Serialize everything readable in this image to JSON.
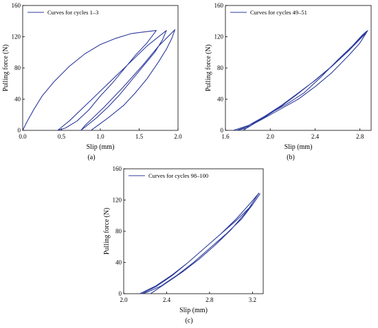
{
  "chart_data": [
    {
      "panel": "(a)",
      "type": "line",
      "legend": "Curves for cycles 1–3",
      "legend_position": "top-left",
      "grid": false,
      "xlabel": "Slip (mm)",
      "ylabel": "Pulling force (N)",
      "xlim": [
        0.0,
        2.0
      ],
      "ylim": [
        0,
        160
      ],
      "xticks": [
        "0.0",
        "0.5",
        "1.0",
        "1.5",
        "2.0"
      ],
      "yticks": [
        "0",
        "40",
        "80",
        "120",
        "160"
      ],
      "color": "#2b3a9b",
      "series": [
        {
          "x": [
            0.0,
            0.05,
            0.15,
            0.25,
            0.4,
            0.6,
            0.8,
            1.0,
            1.2,
            1.4,
            1.55,
            1.72,
            1.6,
            1.45,
            1.3,
            1.15,
            1.0,
            0.85,
            0.7,
            0.55,
            0.45,
            0.6,
            0.85,
            1.1,
            1.35,
            1.6,
            1.85,
            1.8,
            1.7,
            1.55,
            1.4,
            1.25,
            1.1,
            0.95,
            0.75,
            0.8,
            1.05,
            1.3,
            1.55,
            1.75,
            1.96,
            1.92,
            1.85,
            1.75,
            1.6,
            1.45,
            1.3,
            1.1,
            0.88
          ]
        },
        {
          "y": [
            0,
            10,
            28,
            44,
            62,
            82,
            98,
            110,
            118,
            124,
            126,
            128,
            112,
            96,
            78,
            60,
            44,
            26,
            12,
            3,
            0,
            12,
            36,
            60,
            84,
            108,
            128,
            116,
            100,
            82,
            64,
            46,
            30,
            16,
            0,
            6,
            30,
            56,
            84,
            108,
            129,
            118,
            104,
            88,
            66,
            48,
            32,
            16,
            0
          ]
        }
      ]
    },
    {
      "panel": "(b)",
      "type": "line",
      "legend": "Curves for cycles 49–51",
      "legend_position": "top-left",
      "grid": false,
      "xlabel": "Slip (mm)",
      "ylabel": "Pulling force (N)",
      "xlim": [
        1.6,
        2.9
      ],
      "ylim": [
        0,
        160
      ],
      "xticks": [
        "1.6",
        "2.0",
        "2.4",
        "2.8"
      ],
      "yticks": [
        "0",
        "40",
        "80",
        "120",
        "160"
      ],
      "color": "#2b3a9b",
      "series": [
        {
          "x": [
            1.67,
            1.8,
            1.95,
            2.1,
            2.25,
            2.4,
            2.55,
            2.7,
            2.85,
            2.87,
            2.8,
            2.7,
            2.55,
            2.4,
            2.25,
            2.1,
            1.95,
            1.82,
            1.7,
            1.79,
            1.93,
            2.08,
            2.23,
            2.38,
            2.53,
            2.68,
            2.82,
            2.86,
            2.76,
            2.6,
            2.45,
            2.3,
            2.15,
            2.0,
            1.86,
            1.76
          ]
        },
        {
          "y": [
            0,
            6,
            18,
            32,
            48,
            64,
            82,
            102,
            124,
            128,
            112,
            96,
            74,
            56,
            40,
            28,
            16,
            6,
            0,
            3,
            15,
            29,
            45,
            62,
            80,
            100,
            122,
            127,
            112,
            90,
            68,
            48,
            34,
            22,
            10,
            0
          ]
        }
      ]
    },
    {
      "panel": "(c)",
      "type": "line",
      "legend": "Curves for cycles 98–100",
      "legend_position": "top-left",
      "grid": false,
      "xlabel": "Slip (mm)",
      "ylabel": "Pulling force (N)",
      "xlim": [
        2.0,
        3.3
      ],
      "ylim": [
        0,
        160
      ],
      "xticks": [
        "2.0",
        "2.4",
        "2.8",
        "3.2"
      ],
      "yticks": [
        "0",
        "40",
        "80",
        "120",
        "160"
      ],
      "color": "#2b3a9b",
      "series": [
        {
          "x": [
            2.15,
            2.3,
            2.45,
            2.6,
            2.75,
            2.9,
            3.05,
            3.2,
            3.27,
            3.2,
            3.1,
            2.95,
            2.8,
            2.65,
            2.5,
            2.35,
            2.22,
            2.17,
            2.3,
            2.45,
            2.6,
            2.75,
            2.9,
            3.05,
            3.18,
            3.26,
            3.15,
            3.0,
            2.85,
            2.7,
            2.55,
            2.4,
            2.25
          ]
        },
        {
          "y": [
            0,
            10,
            24,
            40,
            58,
            76,
            94,
            114,
            128,
            114,
            96,
            76,
            58,
            40,
            24,
            10,
            2,
            0,
            9,
            23,
            40,
            58,
            76,
            96,
            116,
            129,
            106,
            82,
            62,
            44,
            28,
            14,
            0
          ]
        }
      ]
    }
  ]
}
